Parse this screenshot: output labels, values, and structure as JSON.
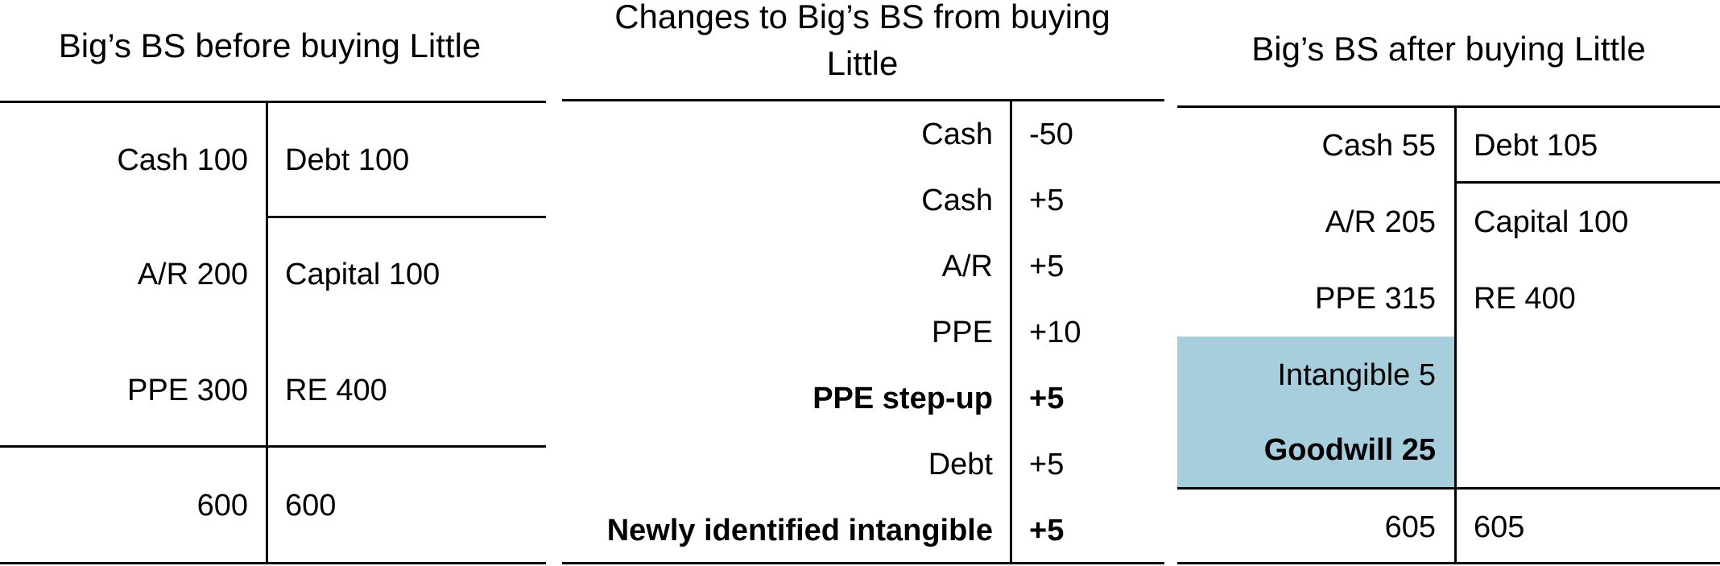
{
  "panel_before": {
    "title": "Big’s BS before buying Little",
    "rows": [
      {
        "asset": "Cash 100",
        "liability": "Debt 100"
      },
      {
        "asset": "A/R 200",
        "liability": "Capital 100"
      },
      {
        "asset": "PPE 300",
        "liability": "RE 400"
      },
      {
        "asset": "600",
        "liability": "600"
      }
    ]
  },
  "panel_changes": {
    "title_line1": "Changes to Big’s BS from buying",
    "title_line2": "Little",
    "rows": [
      {
        "item": "Cash",
        "change": "-50",
        "bold": false
      },
      {
        "item": "Cash",
        "change": "+5",
        "bold": false
      },
      {
        "item": "A/R",
        "change": "+5",
        "bold": false
      },
      {
        "item": "PPE",
        "change": "+10",
        "bold": false
      },
      {
        "item": "PPE step-up",
        "change": "+5",
        "bold": true
      },
      {
        "item": "Debt",
        "change": "+5",
        "bold": false
      },
      {
        "item": "Newly identified intangible",
        "change": "+5",
        "bold": true
      }
    ]
  },
  "panel_after": {
    "title": "Big’s BS after buying Little",
    "assets": [
      "Cash 55",
      "A/R 205",
      "PPE 315",
      "Intangible 5",
      "Goodwill 25"
    ],
    "liabilities": [
      "Debt 105",
      "Capital 100",
      "RE 400"
    ],
    "total_assets": "605",
    "total_liabilities": "605",
    "highlight_color": "#a6cedd"
  }
}
